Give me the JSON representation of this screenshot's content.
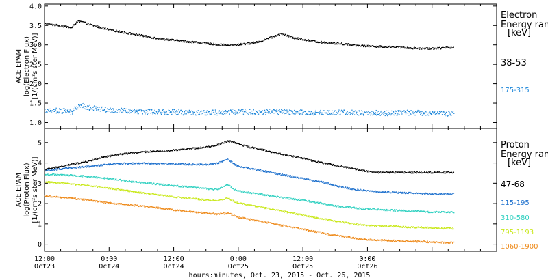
{
  "chart_data": [
    {
      "type": "scatter",
      "panel": "electron",
      "ylabel_lines": [
        "ACE EPAM",
        "log(Electron Flux)",
        "[1/(cm²s ster MeV)]"
      ],
      "legend_title_lines": [
        "Electron",
        "Energy ran",
        "[keV]"
      ],
      "xlim_hours": [
        12,
        96
      ],
      "ylim": [
        0.85,
        4.05
      ],
      "yticks": [
        1.0,
        1.5,
        2.0,
        2.5,
        3.0,
        3.5,
        4.0
      ],
      "ytick_labels": [
        "1.0",
        "1.5",
        "2.0",
        "2.5",
        "3.0",
        "3.5",
        "4.0"
      ],
      "series": [
        {
          "name": "38-53",
          "color": "#000000",
          "x": [
            12,
            14,
            16,
            17,
            18,
            19,
            20,
            22,
            24,
            26,
            28,
            30,
            32,
            34,
            36,
            38,
            40,
            42,
            44,
            46,
            48,
            50,
            52,
            54,
            56,
            57,
            58,
            60,
            62,
            64,
            66,
            68,
            70,
            72,
            74,
            76,
            78,
            80,
            82,
            84,
            86,
            88
          ],
          "y": [
            3.55,
            3.52,
            3.48,
            3.45,
            3.62,
            3.6,
            3.55,
            3.47,
            3.4,
            3.35,
            3.3,
            3.25,
            3.2,
            3.16,
            3.13,
            3.1,
            3.08,
            3.05,
            3.02,
            3.0,
            3.02,
            3.05,
            3.1,
            3.2,
            3.3,
            3.25,
            3.2,
            3.15,
            3.1,
            3.07,
            3.05,
            3.03,
            3.0,
            2.98,
            2.97,
            2.96,
            2.95,
            2.93,
            2.92,
            2.92,
            2.93,
            2.95
          ]
        },
        {
          "name": "175-315",
          "color": "#1a85d9",
          "x": [
            12,
            14,
            16,
            17,
            18,
            19,
            20,
            22,
            24,
            26,
            28,
            30,
            32,
            34,
            36,
            38,
            40,
            42,
            44,
            46,
            48,
            50,
            52,
            54,
            56,
            58,
            60,
            62,
            64,
            66,
            68,
            70,
            72,
            74,
            76,
            78,
            80,
            82,
            84,
            86,
            88
          ],
          "y": [
            1.33,
            1.32,
            1.3,
            1.28,
            1.42,
            1.45,
            1.4,
            1.36,
            1.33,
            1.32,
            1.3,
            1.3,
            1.29,
            1.28,
            1.28,
            1.27,
            1.27,
            1.26,
            1.27,
            1.28,
            1.3,
            1.28,
            1.27,
            1.3,
            1.28,
            1.27,
            1.27,
            1.26,
            1.27,
            1.28,
            1.27,
            1.26,
            1.25,
            1.26,
            1.25,
            1.26,
            1.27,
            1.25,
            1.26,
            1.24,
            1.25
          ]
        }
      ]
    },
    {
      "type": "scatter",
      "panel": "proton",
      "ylabel_lines": [
        "ACE EPAM",
        "log(Proton Flux)",
        "[1/(cm²s ster MeV)]"
      ],
      "legend_title_lines": [
        "Proton",
        "Energy ran",
        "[keV]"
      ],
      "xlim_hours": [
        12,
        96
      ],
      "ylim": [
        -0.35,
        5.7
      ],
      "yticks": [
        0,
        1,
        2,
        3,
        4,
        5
      ],
      "ytick_labels": [
        "0",
        "1",
        "2",
        "3",
        "4",
        "5"
      ],
      "xticks_hours": [
        12,
        24,
        36,
        48,
        60,
        72,
        84
      ],
      "xtick_time_labels": [
        "12:00",
        "0:00",
        "12:00",
        "0:00",
        "12:00",
        "0:00",
        ""
      ],
      "xtick_date_labels": [
        "Oct23",
        "Oct24",
        "Oct24",
        "Oct25",
        "Oct25",
        "Oct26",
        ""
      ],
      "xlabel": "hours:minutes, Oct. 23, 2015 - Oct. 26, 2015",
      "series": [
        {
          "name": "47-68",
          "color": "#000000",
          "x": [
            12,
            14,
            16,
            18,
            20,
            22,
            24,
            26,
            28,
            30,
            32,
            34,
            36,
            38,
            40,
            42,
            44,
            46,
            47,
            48,
            50,
            52,
            54,
            56,
            58,
            60,
            62,
            64,
            66,
            68,
            70,
            72,
            74,
            76,
            78,
            80,
            82,
            84,
            86,
            88
          ],
          "y": [
            3.7,
            3.8,
            3.9,
            4.0,
            4.1,
            4.25,
            4.35,
            4.45,
            4.5,
            4.55,
            4.6,
            4.6,
            4.65,
            4.7,
            4.75,
            4.8,
            4.9,
            5.1,
            5.05,
            4.95,
            4.8,
            4.7,
            4.55,
            4.45,
            4.35,
            4.25,
            4.1,
            4.0,
            3.9,
            3.8,
            3.7,
            3.6,
            3.55,
            3.55,
            3.55,
            3.55,
            3.55,
            3.55,
            3.55,
            3.55
          ]
        },
        {
          "name": "115-195",
          "color": "#1a6ecc",
          "x": [
            12,
            14,
            16,
            18,
            20,
            22,
            24,
            26,
            28,
            30,
            32,
            34,
            36,
            38,
            40,
            42,
            44,
            46,
            47,
            48,
            50,
            52,
            54,
            56,
            58,
            60,
            62,
            64,
            66,
            68,
            70,
            72,
            74,
            76,
            78,
            80,
            82,
            84,
            86,
            88
          ],
          "y": [
            3.65,
            3.7,
            3.75,
            3.8,
            3.85,
            3.9,
            3.95,
            3.98,
            4.0,
            4.0,
            4.0,
            3.98,
            3.98,
            3.95,
            3.95,
            3.95,
            4.0,
            4.2,
            4.0,
            3.85,
            3.75,
            3.65,
            3.55,
            3.45,
            3.35,
            3.25,
            3.15,
            3.05,
            2.9,
            2.8,
            2.7,
            2.65,
            2.6,
            2.58,
            2.55,
            2.55,
            2.52,
            2.5,
            2.5,
            2.5
          ]
        },
        {
          "name": "310-580",
          "color": "#2ed0c0",
          "x": [
            12,
            14,
            16,
            18,
            20,
            22,
            24,
            26,
            28,
            30,
            32,
            34,
            36,
            38,
            40,
            42,
            44,
            46,
            47,
            48,
            50,
            52,
            54,
            56,
            58,
            60,
            62,
            64,
            66,
            68,
            70,
            72,
            74,
            76,
            78,
            80,
            82,
            84,
            86,
            88
          ],
          "y": [
            3.45,
            3.45,
            3.42,
            3.4,
            3.35,
            3.3,
            3.25,
            3.18,
            3.1,
            3.05,
            3.0,
            2.95,
            2.9,
            2.85,
            2.8,
            2.75,
            2.72,
            2.95,
            2.75,
            2.65,
            2.55,
            2.48,
            2.4,
            2.32,
            2.25,
            2.18,
            2.1,
            2.0,
            1.9,
            1.85,
            1.8,
            1.75,
            1.72,
            1.7,
            1.68,
            1.65,
            1.62,
            1.6,
            1.6,
            1.6
          ]
        },
        {
          "name": "795-1193",
          "color": "#c9e81a",
          "x": [
            12,
            14,
            16,
            18,
            20,
            22,
            24,
            26,
            28,
            30,
            32,
            34,
            36,
            38,
            40,
            42,
            44,
            46,
            47,
            48,
            50,
            52,
            54,
            56,
            58,
            60,
            62,
            64,
            66,
            68,
            70,
            72,
            74,
            76,
            78,
            80,
            82,
            84,
            86,
            88
          ],
          "y": [
            3.1,
            3.05,
            3.0,
            2.95,
            2.9,
            2.85,
            2.78,
            2.7,
            2.62,
            2.55,
            2.48,
            2.42,
            2.35,
            2.3,
            2.25,
            2.2,
            2.15,
            2.3,
            2.15,
            2.05,
            1.95,
            1.85,
            1.75,
            1.65,
            1.55,
            1.45,
            1.35,
            1.25,
            1.15,
            1.08,
            1.0,
            0.95,
            0.92,
            0.9,
            0.88,
            0.85,
            0.85,
            0.82,
            0.8,
            0.8
          ]
        },
        {
          "name": "1060-1900",
          "color": "#ee8a1a",
          "x": [
            12,
            14,
            16,
            18,
            20,
            22,
            24,
            26,
            28,
            30,
            32,
            34,
            36,
            38,
            40,
            42,
            44,
            46,
            47,
            48,
            50,
            52,
            54,
            56,
            58,
            60,
            62,
            64,
            66,
            68,
            70,
            72,
            74,
            76,
            78,
            80,
            82,
            84,
            86,
            88
          ],
          "y": [
            2.4,
            2.35,
            2.3,
            2.25,
            2.2,
            2.12,
            2.05,
            2.0,
            1.95,
            1.9,
            1.85,
            1.78,
            1.7,
            1.65,
            1.6,
            1.55,
            1.5,
            1.55,
            1.45,
            1.35,
            1.25,
            1.15,
            1.05,
            0.95,
            0.85,
            0.75,
            0.65,
            0.55,
            0.45,
            0.38,
            0.3,
            0.25,
            0.22,
            0.2,
            0.18,
            0.15,
            0.15,
            0.12,
            0.1,
            0.1
          ]
        }
      ]
    }
  ]
}
